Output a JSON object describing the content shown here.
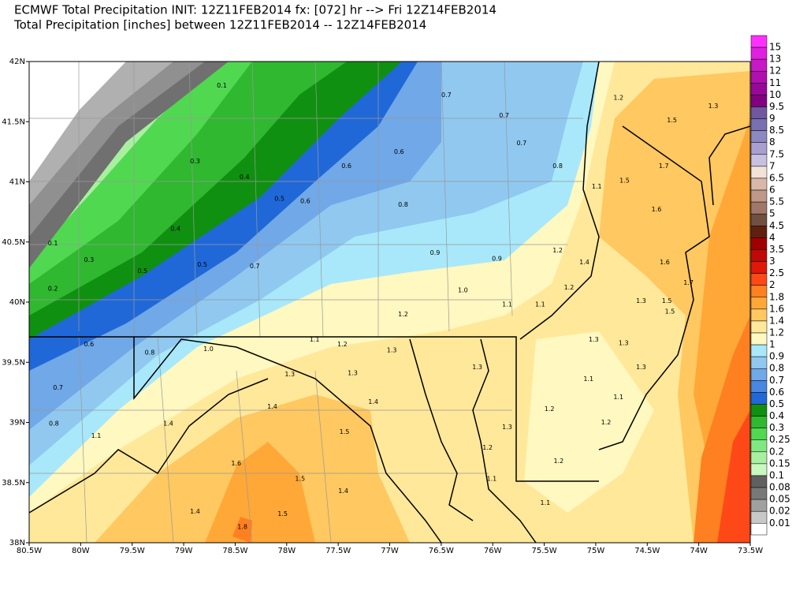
{
  "header": {
    "title": "ECMWF Total Precipitation INIT: 12Z11FEB2014  fx: [072] hr --> Fri 12Z14FEB2014",
    "subtitle": "Total Precipitation [inches] between 12Z11FEB2014 -- 12Z14FEB2014"
  },
  "map": {
    "xlim": [
      -80.5,
      -73.5
    ],
    "ylim": [
      38,
      42
    ],
    "xticks": [
      {
        "value": -80.5,
        "label": "80.5W"
      },
      {
        "value": -80,
        "label": "80W"
      },
      {
        "value": -79.5,
        "label": "79.5W"
      },
      {
        "value": -79,
        "label": "79W"
      },
      {
        "value": -78.5,
        "label": "78.5W"
      },
      {
        "value": -78,
        "label": "78W"
      },
      {
        "value": -77.5,
        "label": "77.5W"
      },
      {
        "value": -77,
        "label": "77W"
      },
      {
        "value": -76.5,
        "label": "76.5W"
      },
      {
        "value": -76,
        "label": "76W"
      },
      {
        "value": -75.5,
        "label": "75.5W"
      },
      {
        "value": -75,
        "label": "75W"
      },
      {
        "value": -74.5,
        "label": "74.5W"
      },
      {
        "value": -74,
        "label": "74W"
      },
      {
        "value": -73.5,
        "label": "73.5W"
      }
    ],
    "yticks": [
      {
        "value": 42,
        "label": "42N"
      },
      {
        "value": 41.5,
        "label": "41.5N"
      },
      {
        "value": 41,
        "label": "41N"
      },
      {
        "value": 40.5,
        "label": "40.5N"
      },
      {
        "value": 40,
        "label": "40N"
      },
      {
        "value": 39.5,
        "label": "39.5N"
      },
      {
        "value": 39,
        "label": "39N"
      },
      {
        "value": 38.5,
        "label": "38.5N"
      },
      {
        "value": 38,
        "label": "38N"
      }
    ],
    "labels": [
      {
        "text": "0.1",
        "lon": -78.63,
        "lat": 41.8
      },
      {
        "text": "0.3",
        "lon": -78.89,
        "lat": 41.17
      },
      {
        "text": "0.4",
        "lon": -78.41,
        "lat": 41.04
      },
      {
        "text": "0.5",
        "lon": -78.07,
        "lat": 40.86
      },
      {
        "text": "0.6",
        "lon": -77.82,
        "lat": 40.84
      },
      {
        "text": "0.6",
        "lon": -77.42,
        "lat": 41.13
      },
      {
        "text": "0.6",
        "lon": -76.91,
        "lat": 41.25
      },
      {
        "text": "0.7",
        "lon": -76.45,
        "lat": 41.72
      },
      {
        "text": "0.7",
        "lon": -75.89,
        "lat": 41.55
      },
      {
        "text": "0.7",
        "lon": -75.72,
        "lat": 41.32
      },
      {
        "text": "0.8",
        "lon": -75.37,
        "lat": 41.13
      },
      {
        "text": "0.8",
        "lon": -76.87,
        "lat": 40.81
      },
      {
        "text": "0.9",
        "lon": -76.56,
        "lat": 40.41
      },
      {
        "text": "0.9",
        "lon": -75.96,
        "lat": 40.36
      },
      {
        "text": "1.0",
        "lon": -76.29,
        "lat": 40.1
      },
      {
        "text": "1.2",
        "lon": -76.87,
        "lat": 39.9
      },
      {
        "text": "1.2",
        "lon": -74.78,
        "lat": 41.7
      },
      {
        "text": "1.3",
        "lon": -73.86,
        "lat": 41.63
      },
      {
        "text": "1.5",
        "lon": -74.26,
        "lat": 41.51
      },
      {
        "text": "1.7",
        "lon": -74.34,
        "lat": 41.13
      },
      {
        "text": "1.6",
        "lon": -74.41,
        "lat": 40.77
      },
      {
        "text": "1.5",
        "lon": -74.72,
        "lat": 41.01
      },
      {
        "text": "1.6",
        "lon": -74.33,
        "lat": 40.33
      },
      {
        "text": "1.7",
        "lon": -74.1,
        "lat": 40.16
      },
      {
        "text": "1.3",
        "lon": -74.56,
        "lat": 40.01
      },
      {
        "text": "1.4",
        "lon": -75.11,
        "lat": 40.33
      },
      {
        "text": "1.2",
        "lon": -75.37,
        "lat": 40.43
      },
      {
        "text": "1.1",
        "lon": -74.99,
        "lat": 40.96
      },
      {
        "text": "0.4",
        "lon": -79.08,
        "lat": 40.61
      },
      {
        "text": "0.3",
        "lon": -79.92,
        "lat": 40.35
      },
      {
        "text": "0.2",
        "lon": -80.27,
        "lat": 40.11
      },
      {
        "text": "0.1",
        "lon": -80.27,
        "lat": 40.49
      },
      {
        "text": "0.5",
        "lon": -79.4,
        "lat": 40.26
      },
      {
        "text": "0.5",
        "lon": -78.82,
        "lat": 40.31
      },
      {
        "text": "0.7",
        "lon": -78.31,
        "lat": 40.3
      },
      {
        "text": "0.6",
        "lon": -79.92,
        "lat": 39.65
      },
      {
        "text": "0.8",
        "lon": -79.33,
        "lat": 39.58
      },
      {
        "text": "0.7",
        "lon": -80.22,
        "lat": 39.29
      },
      {
        "text": "0.8",
        "lon": -80.26,
        "lat": 38.99
      },
      {
        "text": "1.0",
        "lon": -78.76,
        "lat": 39.61
      },
      {
        "text": "1.1",
        "lon": -79.85,
        "lat": 38.89
      },
      {
        "text": "1.4",
        "lon": -79.15,
        "lat": 38.99
      },
      {
        "text": "1.4",
        "lon": -78.14,
        "lat": 39.13
      },
      {
        "text": "1.3",
        "lon": -77.97,
        "lat": 39.4
      },
      {
        "text": "1.3",
        "lon": -77.36,
        "lat": 39.41
      },
      {
        "text": "1.3",
        "lon": -76.98,
        "lat": 39.6
      },
      {
        "text": "1.4",
        "lon": -77.16,
        "lat": 39.17
      },
      {
        "text": "1.5",
        "lon": -77.44,
        "lat": 38.92
      },
      {
        "text": "1.6",
        "lon": -78.49,
        "lat": 38.66
      },
      {
        "text": "1.5",
        "lon": -77.87,
        "lat": 38.53
      },
      {
        "text": "1.4",
        "lon": -77.45,
        "lat": 38.43
      },
      {
        "text": "1.4",
        "lon": -78.89,
        "lat": 38.26
      },
      {
        "text": "1.8",
        "lon": -78.43,
        "lat": 38.13
      },
      {
        "text": "1.5",
        "lon": -78.04,
        "lat": 38.24
      },
      {
        "text": "1.3",
        "lon": -76.15,
        "lat": 39.46
      },
      {
        "text": "1.3",
        "lon": -75.86,
        "lat": 38.96
      },
      {
        "text": "1.2",
        "lon": -76.05,
        "lat": 38.79
      },
      {
        "text": "1.1",
        "lon": -76.01,
        "lat": 38.53
      },
      {
        "text": "1.1",
        "lon": -75.49,
        "lat": 38.33
      },
      {
        "text": "1.2",
        "lon": -75.36,
        "lat": 38.68
      },
      {
        "text": "1.2",
        "lon": -75.45,
        "lat": 39.11
      },
      {
        "text": "1.1",
        "lon": -75.07,
        "lat": 39.36
      },
      {
        "text": "1.1",
        "lon": -74.78,
        "lat": 39.21
      },
      {
        "text": "1.2",
        "lon": -74.9,
        "lat": 39.0
      },
      {
        "text": "1.3",
        "lon": -74.56,
        "lat": 39.46
      },
      {
        "text": "1.3",
        "lon": -74.73,
        "lat": 39.66
      },
      {
        "text": "1.3",
        "lon": -75.02,
        "lat": 39.69
      },
      {
        "text": "1.1",
        "lon": -75.86,
        "lat": 39.98
      },
      {
        "text": "1.1",
        "lon": -75.54,
        "lat": 39.98
      },
      {
        "text": "1.2",
        "lon": -75.26,
        "lat": 40.12
      },
      {
        "text": "1.1",
        "lon": -77.73,
        "lat": 39.69
      },
      {
        "text": "1.2",
        "lon": -77.46,
        "lat": 39.65
      },
      {
        "text": "1.5",
        "lon": -74.31,
        "lat": 40.01
      },
      {
        "text": "1.5",
        "lon": -74.28,
        "lat": 39.92
      }
    ]
  },
  "colorbar": {
    "levels": [
      {
        "value": 15,
        "color": "#ff30ff"
      },
      {
        "value": 13,
        "color": "#e020e0"
      },
      {
        "value": 12,
        "color": "#c818c8"
      },
      {
        "value": 11,
        "color": "#b010b0"
      },
      {
        "value": 10,
        "color": "#980898"
      },
      {
        "value": 9.5,
        "color": "#800080"
      },
      {
        "value": 9,
        "color": "#7058a0"
      },
      {
        "value": 8.5,
        "color": "#7870b0"
      },
      {
        "value": 8,
        "color": "#8c88c0"
      },
      {
        "value": 7.5,
        "color": "#a8a0d0"
      },
      {
        "value": 7,
        "color": "#c8c0e0"
      },
      {
        "value": 6.5,
        "color": "#f2e2d8"
      },
      {
        "value": 6,
        "color": "#d8b8a8"
      },
      {
        "value": 5.5,
        "color": "#c09888"
      },
      {
        "value": 5,
        "color": "#a07868"
      },
      {
        "value": 4.5,
        "color": "#705040"
      },
      {
        "value": 4,
        "color": "#602010"
      },
      {
        "value": 3.5,
        "color": "#a00000"
      },
      {
        "value": 3,
        "color": "#c00808"
      },
      {
        "value": 2.5,
        "color": "#e01808"
      },
      {
        "value": 2,
        "color": "#ff4818"
      },
      {
        "value": 1.8,
        "color": "#ff8020"
      },
      {
        "value": 1.6,
        "color": "#ffa838"
      },
      {
        "value": 1.4,
        "color": "#ffc860"
      },
      {
        "value": 1.2,
        "color": "#ffe89a"
      },
      {
        "value": 1,
        "color": "#fff8c0"
      },
      {
        "value": 0.9,
        "color": "#a8e8fa"
      },
      {
        "value": 0.8,
        "color": "#90c8f0"
      },
      {
        "value": 0.7,
        "color": "#70a8e8"
      },
      {
        "value": 0.6,
        "color": "#4888e0"
      },
      {
        "value": 0.5,
        "color": "#2068d8"
      },
      {
        "value": 0.4,
        "color": "#109010"
      },
      {
        "value": 0.3,
        "color": "#30b830"
      },
      {
        "value": 0.25,
        "color": "#50d850"
      },
      {
        "value": 0.2,
        "color": "#80e880"
      },
      {
        "value": 0.15,
        "color": "#a8f0a0"
      },
      {
        "value": 0.1,
        "color": "#c8f8c0"
      },
      {
        "value": 0.08,
        "color": "#606060"
      },
      {
        "value": 0.05,
        "color": "#787878"
      },
      {
        "value": 0.02,
        "color": "#a0a0a0"
      },
      {
        "value": 0.01,
        "color": "#c8c8c8"
      }
    ]
  }
}
